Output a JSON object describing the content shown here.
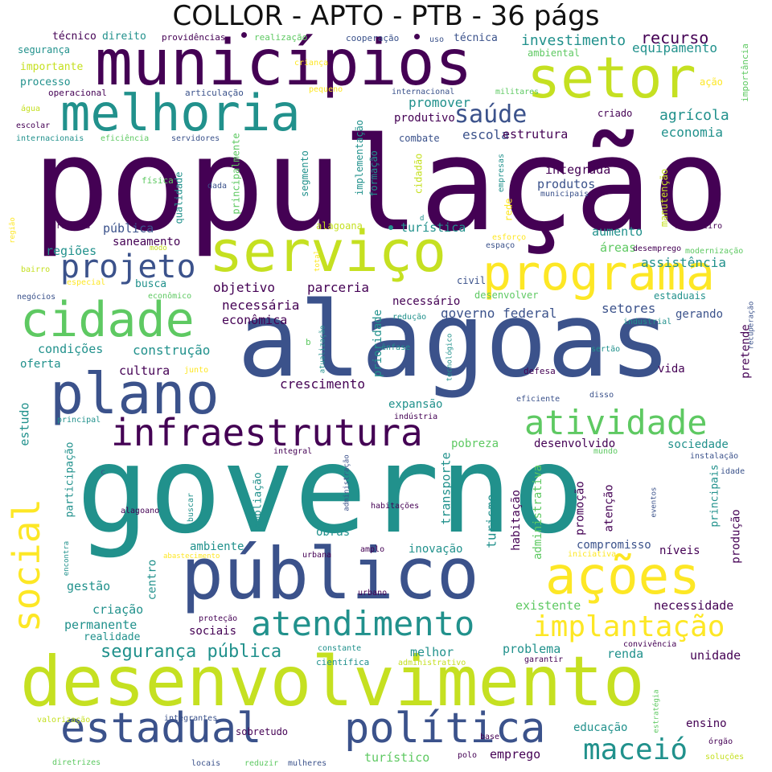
{
  "title": "COLLOR - APTO - PTB - 36 págs",
  "palette": {
    "dark_purple": "#440154",
    "indigo": "#3b528b",
    "teal": "#21918c",
    "green": "#5ec962",
    "lime": "#c5e021",
    "yellow": "#fde725"
  },
  "words": [
    "população",
    "governo",
    "alagoas",
    "desenvolvimento",
    "municípios",
    "público",
    "setor",
    "serviço",
    "plano",
    "melhoria",
    "cidade",
    "programa",
    "estadual",
    "política",
    "ações",
    "social",
    "infraestrutura",
    "atividade",
    "atendimento",
    "implantação",
    "projeto",
    "maceió",
    "saúde",
    "segurança pública",
    "investimento",
    "recurso",
    "equipamento",
    "agrícola",
    "economia",
    "promover",
    "produtivo",
    "escola",
    "estrutura",
    "integrada",
    "produtos",
    "turística",
    "pública",
    "saneamento",
    "regiões",
    "objetivo",
    "parceria",
    "necessária",
    "necessário",
    "econômica",
    "governo federal",
    "setores",
    "gerando",
    "assistência",
    "aumento",
    "áreas",
    "construção",
    "condições",
    "cultura",
    "oferta",
    "crescimento",
    "estudo",
    "expansão",
    "prioridade",
    "pretende",
    "vida",
    "desenvolvido",
    "sociedade",
    "pobreza",
    "turismo",
    "transporte",
    "habitação",
    "promoção",
    "atenção",
    "administrativa",
    "produção",
    "principais",
    "compromisso",
    "níveis",
    "inovação",
    "obras",
    "ambiente",
    "centro",
    "gestão",
    "criação",
    "permanente",
    "realidade",
    "sociais",
    "existente",
    "necessidade",
    "problema",
    "renda",
    "unidade",
    "melhor",
    "educação",
    "ensino",
    "emprego",
    "turístico",
    "sobretudo",
    "participação",
    "ampliação",
    "técnico",
    "direito",
    "providências",
    "realização",
    "cooperação",
    "uso",
    "técnica",
    "segurança",
    "importante",
    "processo",
    "ambiental",
    "criança",
    "ação",
    "importância",
    "articulação",
    "pequeno",
    "internacional",
    "militares",
    "operacional",
    "água",
    "escolar",
    "criado",
    "internacionais",
    "eficiência",
    "servidores",
    "implementação",
    "formação",
    "combate",
    "segmento",
    "cidadão",
    "principalmente",
    "física",
    "qualidade",
    "dada",
    "empresas",
    "municipais",
    "manutenção",
    "reforma",
    "região",
    "alagoana",
    "rede",
    "d",
    "financeiro",
    "esforço",
    "espaço",
    "modo",
    "desemprego",
    "modernização",
    "total",
    "bairro",
    "especial",
    "busca",
    "civil",
    "desenvolver",
    "estaduais",
    "negócios",
    "econômico",
    "redução",
    "industrial",
    "recuperação",
    "atualização",
    "b",
    "ênfase",
    "tecnológico",
    "sertão",
    "junto",
    "defesa",
    "eficiente",
    "disso",
    "principal",
    "indústria",
    "integral",
    "mundo",
    "instalação",
    "administração",
    "c",
    "idade",
    "buscar",
    "habitações",
    "eventos",
    "alagoano",
    "encontra",
    "abastecimento",
    "urbana",
    "amplo",
    "iniciativa",
    "urbano",
    "proteção",
    "constante",
    "convivência",
    "científica",
    "administrativo",
    "garantir",
    "valorização",
    "integrantes",
    "estratégia",
    "base",
    "órgão",
    "diretrizes",
    "locais",
    "reduzir",
    "mulheres",
    "polo",
    "soluções"
  ]
}
